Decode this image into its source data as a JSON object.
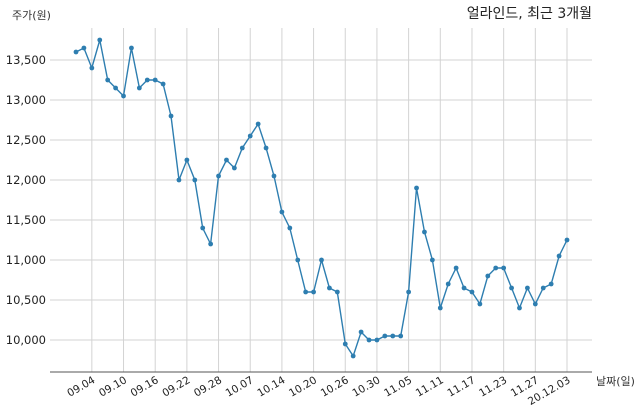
{
  "chart_data": {
    "type": "line",
    "title": "얼라인드, 최근 3개월",
    "ylabel": "주가(원)",
    "xlabel": "날짜(일)",
    "ylim": [
      9600,
      13900
    ],
    "yticks": [
      10000,
      10500,
      11000,
      11500,
      12000,
      12500,
      13000,
      13500
    ],
    "ytick_labels": [
      "10,000",
      "10,500",
      "11,000",
      "11,500",
      "12,000",
      "12,500",
      "13,000",
      "13,500"
    ],
    "xtick_labels": [
      "09.04",
      "09.10",
      "09.16",
      "09.22",
      "09.28",
      "10.07",
      "10.14",
      "10.20",
      "10.26",
      "10.30",
      "11.05",
      "11.11",
      "11.17",
      "11.23",
      "11.27",
      "20.12.03"
    ],
    "xtick_indices": [
      2,
      6,
      10,
      14,
      18,
      22,
      26,
      30,
      34,
      38,
      42,
      46,
      50,
      54,
      58,
      62
    ],
    "grid": true,
    "colors": {
      "line": "#2e7eb0"
    },
    "series": [
      {
        "values": [
          13600,
          13650,
          13400,
          13750,
          13250,
          13150,
          13050,
          13650,
          13150,
          13250,
          13250,
          13200,
          12800,
          12000,
          12250,
          12000,
          11400,
          11200,
          12050,
          12250,
          12150,
          12400,
          12550,
          12700,
          12400,
          12050,
          11600,
          11400,
          11000,
          10600,
          10600,
          11000,
          10650,
          10600,
          9950,
          9800,
          10100,
          10000,
          10000,
          10050,
          10050,
          10050,
          10600,
          11900,
          11350,
          11000,
          10400,
          10700,
          10900,
          10650,
          10600,
          10450,
          10800,
          10900,
          10900,
          10650,
          10400,
          10650,
          10450,
          10650,
          10700,
          11050,
          11250
        ]
      }
    ]
  }
}
